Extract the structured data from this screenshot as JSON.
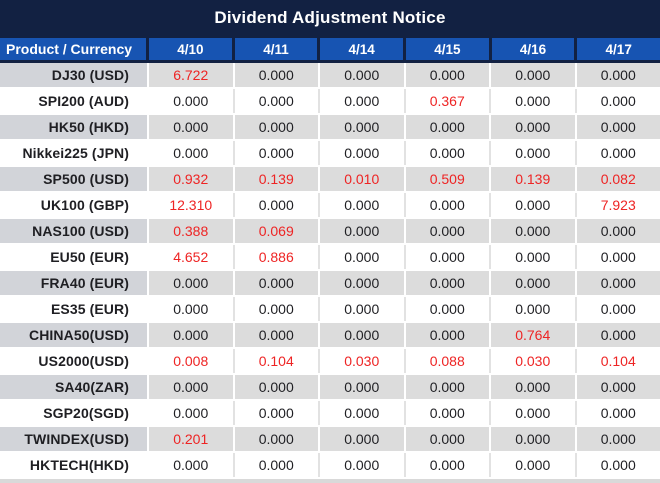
{
  "title": "Dividend Adjustment Notice",
  "colors": {
    "title_bar_navy": "#122142",
    "header_blue": "#1754b2",
    "row_gray": "#dcdcdc",
    "product_cell_gray": "#d2d4d9",
    "highlight_red": "#ee2424",
    "number_text": "#1f1f23"
  },
  "table": {
    "columns": [
      "Product / Currency",
      "4/10",
      "4/11",
      "4/14",
      "4/15",
      "4/16",
      "4/17"
    ],
    "rows": [
      {
        "product": "DJ30 (USD)",
        "values": [
          "6.722",
          "0.000",
          "0.000",
          "0.000",
          "0.000",
          "0.000"
        ],
        "highlights": [
          true,
          false,
          false,
          false,
          false,
          false
        ]
      },
      {
        "product": "SPI200 (AUD)",
        "values": [
          "0.000",
          "0.000",
          "0.000",
          "0.367",
          "0.000",
          "0.000"
        ],
        "highlights": [
          false,
          false,
          false,
          true,
          false,
          false
        ]
      },
      {
        "product": "HK50 (HKD)",
        "values": [
          "0.000",
          "0.000",
          "0.000",
          "0.000",
          "0.000",
          "0.000"
        ],
        "highlights": [
          false,
          false,
          false,
          false,
          false,
          false
        ]
      },
      {
        "product": "Nikkei225 (JPN)",
        "values": [
          "0.000",
          "0.000",
          "0.000",
          "0.000",
          "0.000",
          "0.000"
        ],
        "highlights": [
          false,
          false,
          false,
          false,
          false,
          false
        ]
      },
      {
        "product": "SP500 (USD)",
        "values": [
          "0.932",
          "0.139",
          "0.010",
          "0.509",
          "0.139",
          "0.082"
        ],
        "highlights": [
          true,
          true,
          true,
          true,
          true,
          true
        ]
      },
      {
        "product": "UK100 (GBP)",
        "values": [
          "12.310",
          "0.000",
          "0.000",
          "0.000",
          "0.000",
          "7.923"
        ],
        "highlights": [
          true,
          false,
          false,
          false,
          false,
          true
        ]
      },
      {
        "product": "NAS100 (USD)",
        "values": [
          "0.388",
          "0.069",
          "0.000",
          "0.000",
          "0.000",
          "0.000"
        ],
        "highlights": [
          true,
          true,
          false,
          false,
          false,
          false
        ]
      },
      {
        "product": "EU50 (EUR)",
        "values": [
          "4.652",
          "0.886",
          "0.000",
          "0.000",
          "0.000",
          "0.000"
        ],
        "highlights": [
          true,
          true,
          false,
          false,
          false,
          false
        ]
      },
      {
        "product": "FRA40 (EUR)",
        "values": [
          "0.000",
          "0.000",
          "0.000",
          "0.000",
          "0.000",
          "0.000"
        ],
        "highlights": [
          false,
          false,
          false,
          false,
          false,
          false
        ]
      },
      {
        "product": "ES35 (EUR)",
        "values": [
          "0.000",
          "0.000",
          "0.000",
          "0.000",
          "0.000",
          "0.000"
        ],
        "highlights": [
          false,
          false,
          false,
          false,
          false,
          false
        ]
      },
      {
        "product": "CHINA50(USD)",
        "values": [
          "0.000",
          "0.000",
          "0.000",
          "0.000",
          "0.764",
          "0.000"
        ],
        "highlights": [
          false,
          false,
          false,
          false,
          true,
          false
        ]
      },
      {
        "product": "US2000(USD)",
        "values": [
          "0.008",
          "0.104",
          "0.030",
          "0.088",
          "0.030",
          "0.104"
        ],
        "highlights": [
          true,
          true,
          true,
          true,
          true,
          true
        ]
      },
      {
        "product": "SA40(ZAR)",
        "values": [
          "0.000",
          "0.000",
          "0.000",
          "0.000",
          "0.000",
          "0.000"
        ],
        "highlights": [
          false,
          false,
          false,
          false,
          false,
          false
        ]
      },
      {
        "product": "SGP20(SGD)",
        "values": [
          "0.000",
          "0.000",
          "0.000",
          "0.000",
          "0.000",
          "0.000"
        ],
        "highlights": [
          false,
          false,
          false,
          false,
          false,
          false
        ]
      },
      {
        "product": "TWINDEX(USD)",
        "values": [
          "0.201",
          "0.000",
          "0.000",
          "0.000",
          "0.000",
          "0.000"
        ],
        "highlights": [
          true,
          false,
          false,
          false,
          false,
          false
        ]
      },
      {
        "product": "HKTECH(HKD)",
        "values": [
          "0.000",
          "0.000",
          "0.000",
          "0.000",
          "0.000",
          "0.000"
        ],
        "highlights": [
          false,
          false,
          false,
          false,
          false,
          false
        ]
      }
    ]
  }
}
